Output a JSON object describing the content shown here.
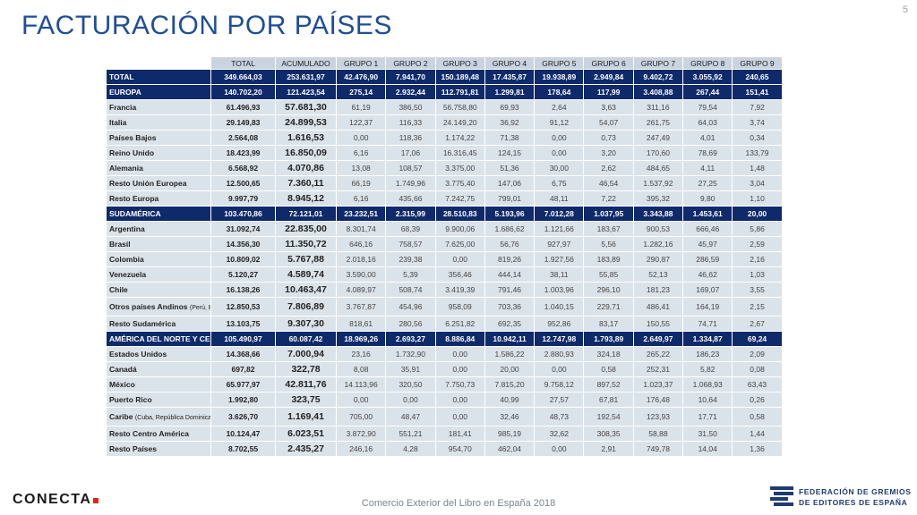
{
  "title": "FACTURACIÓN POR PAÍSES",
  "page_number": "5",
  "columns": [
    "TOTAL",
    "ACUMULADO",
    "GRUPO 1",
    "GRUPO 2",
    "GRUPO 3",
    "GRUPO 4",
    "GRUPO 5",
    "GRUPO 6",
    "GRUPO 7",
    "GRUPO 8",
    "GRUPO 9"
  ],
  "rows": [
    {
      "kind": "region",
      "label": "TOTAL",
      "values": [
        "349.664,03",
        "253.631,97",
        "42.476,90",
        "7.941,70",
        "150.189,48",
        "17.435,87",
        "19.938,89",
        "2.949,84",
        "9.402,72",
        "3.055,92",
        "240,65"
      ]
    },
    {
      "kind": "region",
      "label": "EUROPA",
      "values": [
        "140.702,20",
        "121.423,54",
        "275,14",
        "2.932,44",
        "112.791,81",
        "1.299,81",
        "178,64",
        "117,99",
        "3.408,88",
        "267,44",
        "151,41"
      ]
    },
    {
      "kind": "country",
      "label": "Francia",
      "values": [
        "61.496,93",
        "57.681,30",
        "61,19",
        "386,50",
        "56.758,80",
        "69,93",
        "2,64",
        "3,63",
        "311,16",
        "79,54",
        "7,92"
      ]
    },
    {
      "kind": "country",
      "label": "Italia",
      "values": [
        "29.149,83",
        "24.899,53",
        "122,37",
        "116,33",
        "24.149,20",
        "36,92",
        "91,12",
        "54,07",
        "261,75",
        "64,03",
        "3,74"
      ]
    },
    {
      "kind": "country",
      "label": "Países Bajos",
      "values": [
        "2.564,08",
        "1.616,53",
        "0,00",
        "118,36",
        "1.174,22",
        "71,38",
        "0,00",
        "0,73",
        "247,49",
        "4,01",
        "0,34"
      ]
    },
    {
      "kind": "country",
      "label": "Reino Unido",
      "values": [
        "18.423,99",
        "16.850,09",
        "6,16",
        "17,06",
        "16.316,45",
        "124,15",
        "0,00",
        "3,20",
        "170,60",
        "78,69",
        "133,79"
      ]
    },
    {
      "kind": "country",
      "label": "Alemania",
      "values": [
        "6.568,92",
        "4.070,86",
        "13,08",
        "108,57",
        "3.375,00",
        "51,36",
        "30,00",
        "2,62",
        "484,65",
        "4,11",
        "1,48"
      ]
    },
    {
      "kind": "country",
      "label": "Resto Unión Europea",
      "values": [
        "12.500,65",
        "7.360,11",
        "66,19",
        "1.749,96",
        "3.775,40",
        "147,06",
        "6,75",
        "46,54",
        "1.537,92",
        "27,25",
        "3,04"
      ]
    },
    {
      "kind": "country",
      "label": "Resto Europa",
      "values": [
        "9.997,79",
        "8.945,12",
        "6,16",
        "435,66",
        "7.242,75",
        "799,01",
        "48,11",
        "7,22",
        "395,32",
        "9,80",
        "1,10"
      ]
    },
    {
      "kind": "region",
      "label": "SUDAMÉRICA",
      "values": [
        "103.470,86",
        "72.121,01",
        "23.232,51",
        "2.315,99",
        "28.510,83",
        "5.193,96",
        "7.012,28",
        "1.037,95",
        "3.343,88",
        "1.453,61",
        "20,00"
      ]
    },
    {
      "kind": "country",
      "label": "Argentina",
      "values": [
        "31.092,74",
        "22.835,00",
        "8.301,74",
        "68,39",
        "9.900,06",
        "1.686,62",
        "1.121,66",
        "183,67",
        "900,53",
        "666,46",
        "5,86"
      ]
    },
    {
      "kind": "country",
      "label": "Brasil",
      "values": [
        "14.356,30",
        "11.350,72",
        "646,16",
        "758,57",
        "7.625,00",
        "56,76",
        "927,97",
        "5,56",
        "1.282,16",
        "45,97",
        "2,59"
      ]
    },
    {
      "kind": "country",
      "label": "Colombia",
      "values": [
        "10.809,02",
        "5.767,88",
        "2.018,16",
        "239,38",
        "0,00",
        "819,26",
        "1.927,56",
        "183,89",
        "290,87",
        "286,59",
        "2,16"
      ]
    },
    {
      "kind": "country",
      "label": "Venezuela",
      "values": [
        "5.120,27",
        "4.589,74",
        "3.590,00",
        "5,39",
        "356,46",
        "444,14",
        "38,11",
        "55,85",
        "52,13",
        "46,62",
        "1,03"
      ]
    },
    {
      "kind": "country",
      "label": "Chile",
      "values": [
        "16.138,26",
        "10.463,47",
        "4.089,97",
        "508,74",
        "3.419,39",
        "791,46",
        "1.003,96",
        "296,10",
        "181,23",
        "169,07",
        "3,55"
      ]
    },
    {
      "kind": "country",
      "tall": true,
      "label": "Otros países Andinos",
      "note": "(Perú, Bolivia)",
      "values": [
        "12.850,53",
        "7.806,89",
        "3.767,87",
        "454,96",
        "958,09",
        "703,36",
        "1.040,15",
        "229,71",
        "486,41",
        "164,19",
        "2,15"
      ]
    },
    {
      "kind": "country",
      "label": "Resto Sudamérica",
      "values": [
        "13.103,75",
        "9.307,30",
        "818,61",
        "280,56",
        "6.251,82",
        "692,35",
        "952,86",
        "83,17",
        "150,55",
        "74,71",
        "2,67"
      ]
    },
    {
      "kind": "region",
      "label": "AMÉRICA DEL NORTE Y CENTRAL",
      "values": [
        "105.490,97",
        "60.087,42",
        "18.969,26",
        "2.693,27",
        "8.886,84",
        "10.942,11",
        "12.747,98",
        "1.793,89",
        "2.649,97",
        "1.334,87",
        "69,24"
      ]
    },
    {
      "kind": "country",
      "label": "Estados Unidos",
      "values": [
        "14.368,66",
        "7.000,94",
        "23,16",
        "1.732,90",
        "0,00",
        "1.586,22",
        "2.880,93",
        "324,18",
        "265,22",
        "186,23",
        "2,09"
      ]
    },
    {
      "kind": "country",
      "label": "Canadá",
      "values": [
        "697,82",
        "322,78",
        "8,08",
        "35,91",
        "0,00",
        "20,00",
        "0,00",
        "0,58",
        "252,31",
        "5,82",
        "0,08"
      ]
    },
    {
      "kind": "country",
      "label": "México",
      "values": [
        "65.977,97",
        "42.811,76",
        "14.113,96",
        "320,50",
        "7.750,73",
        "7.815,20",
        "9.758,12",
        "897,52",
        "1.023,37",
        "1.068,93",
        "63,43"
      ]
    },
    {
      "kind": "country",
      "label": "Puerto Rico",
      "values": [
        "1.992,80",
        "323,75",
        "0,00",
        "0,00",
        "0,00",
        "40,99",
        "27,57",
        "67,81",
        "176,48",
        "10,64",
        "0,26"
      ]
    },
    {
      "kind": "country",
      "tall": true,
      "label": "Caribe",
      "note": "(Cuba, República Dominicana)",
      "values": [
        "3.626,70",
        "1.169,41",
        "705,00",
        "48,47",
        "0,00",
        "32,46",
        "48,73",
        "192,54",
        "123,93",
        "17,71",
        "0,58"
      ]
    },
    {
      "kind": "country",
      "label": "Resto Centro América",
      "values": [
        "10.124,47",
        "6.023,51",
        "3.872,90",
        "551,21",
        "181,41",
        "985,19",
        "32,62",
        "308,35",
        "58,88",
        "31,50",
        "1,44"
      ]
    },
    {
      "kind": "country",
      "label": "Resto Países",
      "values": [
        "8.702,55",
        "2.435,27",
        "246,16",
        "4,28",
        "954,70",
        "462,04",
        "0,00",
        "2,91",
        "749,78",
        "14,04",
        "1,36"
      ]
    }
  ],
  "footer": {
    "left_logo_text": "CONECTA",
    "center_text": "Comercio Exterior del Libro en España 2018",
    "right_logo_line1": "FEDERACIÓN DE GREMIOS",
    "right_logo_line2": "DE EDITORES DE ESPAÑA"
  },
  "colors": {
    "title": "#1f4e9a",
    "region_row": "#0e2a6b",
    "country_row": "#dbe3ea",
    "header": "#c9d4df",
    "logo_dot": "#e2231a"
  }
}
